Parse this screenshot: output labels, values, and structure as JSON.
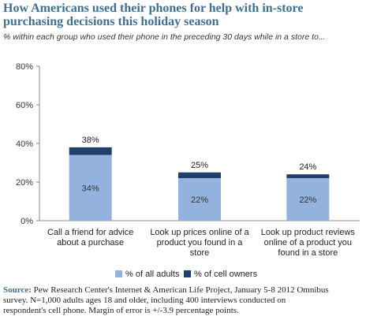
{
  "chart_data": {
    "type": "bar",
    "title_lines": [
      "How Americans used their phones for help with in-store",
      "purchasing decisions this holiday season"
    ],
    "subtitle": "% within each group who used their phone in the preceding 30 days while in a store to...",
    "categories": [
      [
        "Call a friend for advice",
        "about a purchase"
      ],
      [
        "Look up prices online of a",
        "product you found in a",
        "store"
      ],
      [
        "Look up product reviews",
        "online of a product you",
        "found in a store"
      ]
    ],
    "series": [
      {
        "name": "% of all adults",
        "values": [
          34,
          22,
          22
        ],
        "color": "#93b2de"
      },
      {
        "name": "% of cell owners",
        "values": [
          38,
          25,
          24
        ],
        "color": "#1f3f6b"
      }
    ],
    "value_labels_all": [
      "34%",
      "22%",
      "22%"
    ],
    "value_labels_cell": [
      "38%",
      "25%",
      "24%"
    ],
    "yticks": [
      "0%",
      "20%",
      "40%",
      "60%",
      "80%"
    ],
    "ylim": [
      0,
      80
    ],
    "legend_position": "bottom",
    "source_label": "Source:",
    "source_lines": [
      " Pew Research Center's Internet & American Life Project, January 5-8 2012 Omnibus",
      "survey. N=1,000 adults ages 18 and older, including 400 interviews conducted on",
      "respondent's cell phone. Margin of error is +/-3.9 percentage points."
    ]
  }
}
